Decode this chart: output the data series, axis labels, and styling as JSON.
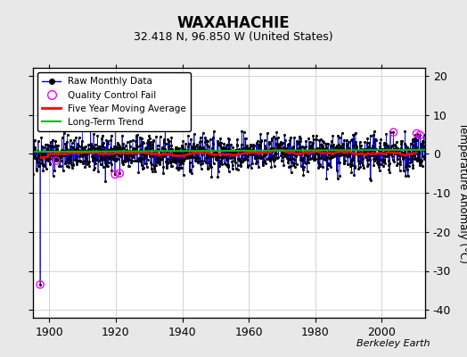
{
  "title": "WAXAHACHIE",
  "subtitle": "32.418 N, 96.850 W (United States)",
  "ylabel": "Temperature Anomaly (°C)",
  "attribution": "Berkeley Earth",
  "xlim": [
    1895,
    2013
  ],
  "ylim": [
    -42,
    22
  ],
  "yticks": [
    -40,
    -30,
    -20,
    -10,
    0,
    10,
    20
  ],
  "xticks": [
    1900,
    1920,
    1940,
    1960,
    1980,
    2000
  ],
  "year_start": 1895,
  "year_end": 2012,
  "bg_color": "#ffffff",
  "fig_color": "#e8e8e8",
  "grid_color": "#cccccc",
  "raw_line_color": "#0000cc",
  "raw_dot_color": "#000000",
  "moving_avg_color": "#ff0000",
  "trend_color": "#00bb00",
  "qc_fail_color": "#ff00ff",
  "seed": 42
}
